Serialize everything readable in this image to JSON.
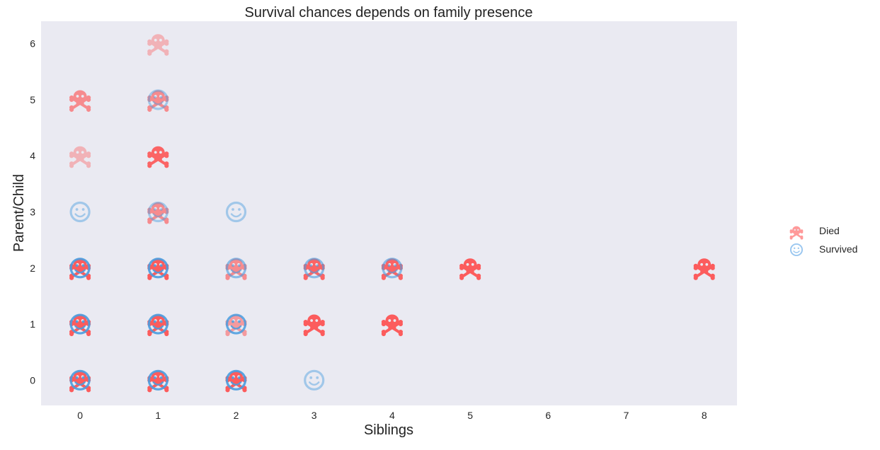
{
  "chart_data": {
    "type": "scatter",
    "title": "Survival chances depends on family presence",
    "xlabel": "Siblings",
    "ylabel": "Parent/Child",
    "x_ticks": [
      0,
      1,
      2,
      3,
      4,
      5,
      6,
      7,
      8
    ],
    "y_ticks": [
      0,
      1,
      2,
      3,
      4,
      5,
      6
    ],
    "xlim": [
      -0.5,
      8.42
    ],
    "ylim": [
      -0.45,
      6.4
    ],
    "grid": false,
    "legend_position": "right",
    "colors": {
      "died": "#ff4d4d",
      "survived": "#4a9de0",
      "plot_bg": "#eaeaf2"
    },
    "series": [
      {
        "name": "Died",
        "marker": "skull-crossbones-icon",
        "points": [
          {
            "x": 0,
            "y": 0,
            "alpha": 0.9
          },
          {
            "x": 0,
            "y": 1,
            "alpha": 0.9
          },
          {
            "x": 0,
            "y": 2,
            "alpha": 0.9
          },
          {
            "x": 0,
            "y": 4,
            "alpha": 0.35
          },
          {
            "x": 0,
            "y": 5,
            "alpha": 0.6
          },
          {
            "x": 1,
            "y": 0,
            "alpha": 0.9
          },
          {
            "x": 1,
            "y": 1,
            "alpha": 0.9
          },
          {
            "x": 1,
            "y": 2,
            "alpha": 0.9
          },
          {
            "x": 1,
            "y": 3,
            "alpha": 0.6
          },
          {
            "x": 1,
            "y": 4,
            "alpha": 0.85
          },
          {
            "x": 1,
            "y": 5,
            "alpha": 0.6
          },
          {
            "x": 1,
            "y": 6,
            "alpha": 0.35
          },
          {
            "x": 2,
            "y": 0,
            "alpha": 0.9
          },
          {
            "x": 2,
            "y": 1,
            "alpha": 0.5
          },
          {
            "x": 2,
            "y": 2,
            "alpha": 0.6
          },
          {
            "x": 3,
            "y": 1,
            "alpha": 0.9
          },
          {
            "x": 3,
            "y": 2,
            "alpha": 0.85
          },
          {
            "x": 4,
            "y": 1,
            "alpha": 0.9
          },
          {
            "x": 4,
            "y": 2,
            "alpha": 0.85
          },
          {
            "x": 5,
            "y": 2,
            "alpha": 0.9
          },
          {
            "x": 8,
            "y": 2,
            "alpha": 0.9
          }
        ]
      },
      {
        "name": "Survived",
        "marker": "smiley-face-icon",
        "points": [
          {
            "x": 0,
            "y": 0,
            "alpha": 0.9
          },
          {
            "x": 0,
            "y": 1,
            "alpha": 0.9
          },
          {
            "x": 0,
            "y": 2,
            "alpha": 0.9
          },
          {
            "x": 0,
            "y": 3,
            "alpha": 0.45
          },
          {
            "x": 1,
            "y": 0,
            "alpha": 0.9
          },
          {
            "x": 1,
            "y": 1,
            "alpha": 0.9
          },
          {
            "x": 1,
            "y": 2,
            "alpha": 0.9
          },
          {
            "x": 1,
            "y": 3,
            "alpha": 0.45
          },
          {
            "x": 1,
            "y": 5,
            "alpha": 0.45
          },
          {
            "x": 2,
            "y": 0,
            "alpha": 0.9
          },
          {
            "x": 2,
            "y": 1,
            "alpha": 0.85
          },
          {
            "x": 2,
            "y": 2,
            "alpha": 0.6
          },
          {
            "x": 2,
            "y": 3,
            "alpha": 0.45
          },
          {
            "x": 3,
            "y": 0,
            "alpha": 0.45
          },
          {
            "x": 3,
            "y": 2,
            "alpha": 0.6
          },
          {
            "x": 4,
            "y": 2,
            "alpha": 0.6
          }
        ]
      }
    ]
  }
}
